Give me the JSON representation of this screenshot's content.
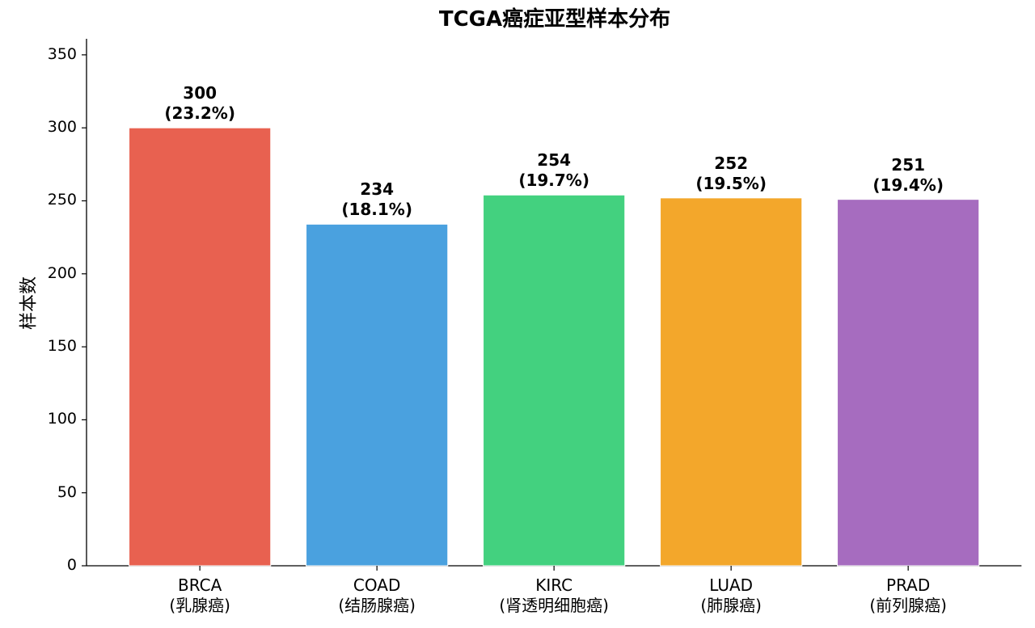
{
  "chart_data": {
    "type": "bar",
    "title": "TCGA癌症亚型样本分布",
    "y_label": "样本数",
    "categories": [
      "BRCA\n(乳腺癌)",
      "COAD\n(结肠腺癌)",
      "KIRC\n(肾透明细胞癌)",
      "LUAD\n(肺腺癌)",
      "PRAD\n(前列腺癌)"
    ],
    "values": [
      300,
      234,
      254,
      252,
      251
    ],
    "value_labels": [
      "300\n(23.2%)",
      "234\n(18.1%)",
      "254\n(19.7%)",
      "252\n(19.5%)",
      "251\n(19.4%)"
    ],
    "colors": [
      "#e86150",
      "#4aa1df",
      "#43d17f",
      "#f3a72b",
      "#a66cbf"
    ],
    "ylim": [
      0,
      361
    ],
    "yticks": [
      0,
      50,
      100,
      150,
      200,
      250,
      300,
      350
    ]
  }
}
